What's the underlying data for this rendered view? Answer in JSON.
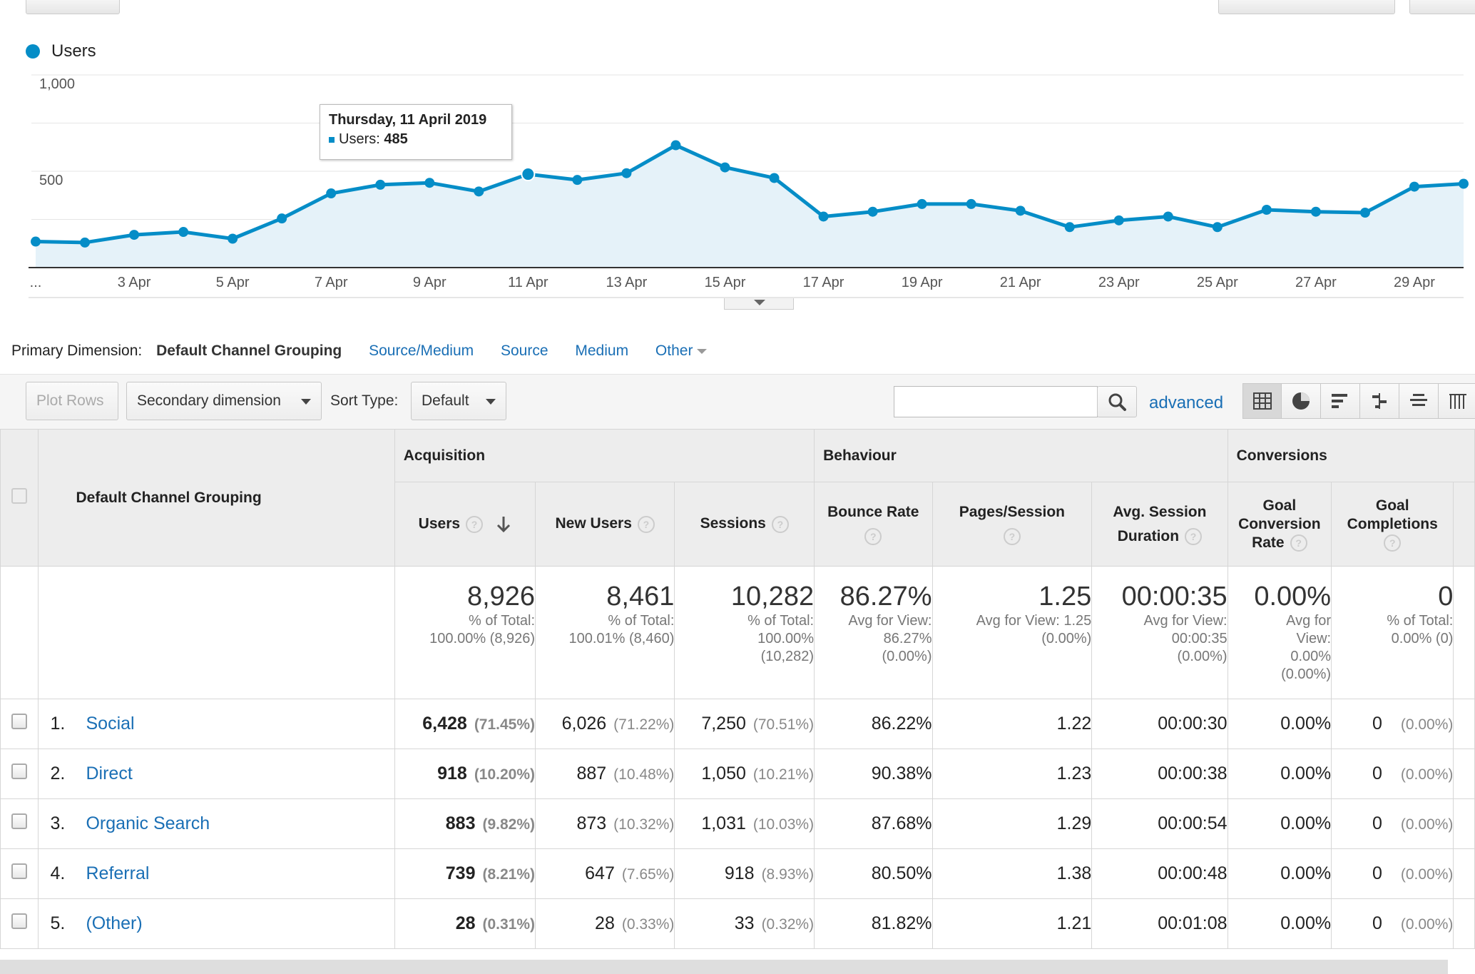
{
  "chart_data": {
    "type": "line",
    "legend": "Users",
    "color": "#058dc7",
    "ylim": [
      0,
      1000
    ],
    "yticks": [
      "1,000",
      "500"
    ],
    "x_tick_labels": [
      "...",
      "3 Apr",
      "5 Apr",
      "7 Apr",
      "9 Apr",
      "11 Apr",
      "13 Apr",
      "15 Apr",
      "17 Apr",
      "19 Apr",
      "21 Apr",
      "23 Apr",
      "25 Apr",
      "27 Apr",
      "29 Apr"
    ],
    "x": [
      "1 Apr",
      "2 Apr",
      "3 Apr",
      "4 Apr",
      "5 Apr",
      "6 Apr",
      "7 Apr",
      "8 Apr",
      "9 Apr",
      "10 Apr",
      "11 Apr",
      "12 Apr",
      "13 Apr",
      "14 Apr",
      "15 Apr",
      "16 Apr",
      "17 Apr",
      "18 Apr",
      "19 Apr",
      "20 Apr",
      "21 Apr",
      "22 Apr",
      "23 Apr",
      "24 Apr",
      "25 Apr",
      "26 Apr",
      "27 Apr",
      "28 Apr",
      "29 Apr",
      "30 Apr"
    ],
    "series": [
      {
        "name": "Users",
        "values": [
          135,
          130,
          170,
          185,
          150,
          255,
          385,
          430,
          440,
          395,
          485,
          455,
          490,
          635,
          520,
          465,
          265,
          290,
          330,
          330,
          295,
          210,
          245,
          265,
          210,
          300,
          290,
          285,
          420,
          435
        ]
      }
    ],
    "grid": true
  },
  "tooltip": {
    "date": "Thursday, 11 April 2019",
    "label": "Users: ",
    "value": "485"
  },
  "dimension": {
    "label": "Primary Dimension:",
    "current": "Default Channel Grouping",
    "links": [
      "Source/Medium",
      "Source",
      "Medium",
      "Other"
    ]
  },
  "toolbar": {
    "plot_rows": "Plot Rows",
    "secondary": "Secondary dimension",
    "sort_label": "Sort Type:",
    "sort_value": "Default",
    "search_placeholder": "",
    "advanced": "advanced"
  },
  "table": {
    "dim_header": "Default Channel Grouping",
    "groups": {
      "acq": "Acquisition",
      "beh": "Behaviour",
      "conv": "Conversions"
    },
    "cols": {
      "users": "Users",
      "new_users": "New Users",
      "sessions": "Sessions",
      "bounce": "Bounce Rate",
      "pps": "Pages/Session",
      "asd1": "Avg. Session",
      "asd2": "Duration",
      "gcr1": "Goal",
      "gcr2": "Conversion",
      "gcr3": "Rate",
      "gc1": "Goal",
      "gc2": "Completions"
    },
    "q": "?",
    "totals": {
      "users": {
        "big": "8,926",
        "l1": "% of Total:",
        "l2": "100.00% (8,926)"
      },
      "new_users": {
        "big": "8,461",
        "l1": "% of Total:",
        "l2": "100.01% (8,460)"
      },
      "sessions": {
        "big": "10,282",
        "l1": "% of Total:",
        "l2": "100.00%",
        "l3": "(10,282)"
      },
      "bounce": {
        "big": "86.27%",
        "l1": "Avg for View:",
        "l2": "86.27%",
        "l3": "(0.00%)"
      },
      "pps": {
        "big": "1.25",
        "l1": "Avg for View: 1.25",
        "l2": "(0.00%)"
      },
      "asd": {
        "big": "00:00:35",
        "l1": "Avg for View:",
        "l2": "00:00:35",
        "l3": "(0.00%)"
      },
      "gcr": {
        "big": "0.00%",
        "l1": "Avg for",
        "l2": "View:",
        "l3": "0.00%",
        "l4": "(0.00%)"
      },
      "gc": {
        "big": "0",
        "l1": "% of Total:",
        "l2": "0.00% (0)"
      }
    },
    "rows": [
      {
        "n": "1.",
        "name": "Social",
        "users": "6,428",
        "users_p": "(71.45%)",
        "new": "6,026",
        "new_p": "(71.22%)",
        "sess": "7,250",
        "sess_p": "(70.51%)",
        "bounce": "86.22%",
        "pps": "1.22",
        "asd": "00:00:30",
        "gcr": "0.00%",
        "gc": "0",
        "gc_p": "(0.00%)"
      },
      {
        "n": "2.",
        "name": "Direct",
        "users": "918",
        "users_p": "(10.20%)",
        "new": "887",
        "new_p": "(10.48%)",
        "sess": "1,050",
        "sess_p": "(10.21%)",
        "bounce": "90.38%",
        "pps": "1.23",
        "asd": "00:00:38",
        "gcr": "0.00%",
        "gc": "0",
        "gc_p": "(0.00%)"
      },
      {
        "n": "3.",
        "name": "Organic Search",
        "users": "883",
        "users_p": "(9.82%)",
        "new": "873",
        "new_p": "(10.32%)",
        "sess": "1,031",
        "sess_p": "(10.03%)",
        "bounce": "87.68%",
        "pps": "1.29",
        "asd": "00:00:54",
        "gcr": "0.00%",
        "gc": "0",
        "gc_p": "(0.00%)"
      },
      {
        "n": "4.",
        "name": "Referral",
        "users": "739",
        "users_p": "(8.21%)",
        "new": "647",
        "new_p": "(7.65%)",
        "sess": "918",
        "sess_p": "(8.93%)",
        "bounce": "80.50%",
        "pps": "1.38",
        "asd": "00:00:48",
        "gcr": "0.00%",
        "gc": "0",
        "gc_p": "(0.00%)"
      },
      {
        "n": "5.",
        "name": "(Other)",
        "users": "28",
        "users_p": "(0.31%)",
        "new": "28",
        "new_p": "(0.33%)",
        "sess": "33",
        "sess_p": "(0.32%)",
        "bounce": "81.82%",
        "pps": "1.21",
        "asd": "00:01:08",
        "gcr": "0.00%",
        "gc": "0",
        "gc_p": "(0.00%)"
      }
    ]
  }
}
